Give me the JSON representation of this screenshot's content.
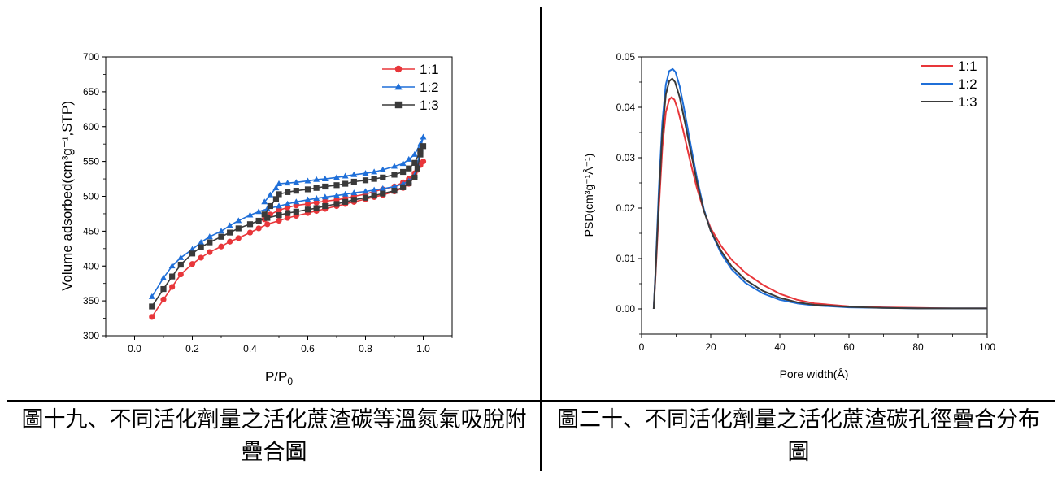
{
  "captions": {
    "left": "圖十九、不同活化劑量之活化蔗渣碳等溫氮氣吸脫附疊合圖",
    "right": "圖二十、不同活化劑量之活化蔗渣碳孔徑疊合分布圖"
  },
  "colors": {
    "red": "#e8363a",
    "blue": "#1f6fd8",
    "dark": "#3a3a3a"
  },
  "chart_data": [
    {
      "type": "line",
      "xlabel": "P/P",
      "xlabel_sub": "0",
      "ylabel": "Volume adsorbed(cm³g⁻¹,STP)",
      "xlim": [
        -0.1,
        1.1
      ],
      "ylim": [
        300,
        700
      ],
      "xticks": [
        "0.0",
        "0.2",
        "0.4",
        "0.6",
        "0.8",
        "1.0"
      ],
      "yticks": [
        "300",
        "350",
        "400",
        "450",
        "500",
        "550",
        "600",
        "650",
        "700"
      ],
      "legend_position": "top-right",
      "series": [
        {
          "name": "1:1",
          "marker": "circle",
          "color": "red",
          "x": [
            0.06,
            0.1,
            0.13,
            0.16,
            0.2,
            0.23,
            0.26,
            0.3,
            0.33,
            0.36,
            0.4,
            0.43,
            0.46,
            0.5,
            0.53,
            0.56,
            0.6,
            0.63,
            0.66,
            0.7,
            0.73,
            0.76,
            0.8,
            0.83,
            0.86,
            0.9,
            0.93,
            0.95,
            0.97,
            0.98,
            0.99,
            1.0,
            0.99,
            0.97,
            0.95,
            0.93,
            0.9,
            0.86,
            0.83,
            0.8,
            0.76,
            0.73,
            0.7,
            0.66,
            0.63,
            0.6,
            0.56,
            0.53,
            0.5,
            0.47,
            0.45
          ],
          "y": [
            327,
            352,
            370,
            388,
            403,
            412,
            420,
            428,
            435,
            440,
            448,
            454,
            460,
            465,
            469,
            472,
            476,
            479,
            482,
            486,
            489,
            492,
            496,
            499,
            502,
            507,
            512,
            518,
            528,
            538,
            545,
            550,
            545,
            533,
            525,
            520,
            514,
            510,
            507,
            503,
            500,
            497,
            495,
            493,
            491,
            489,
            487,
            484,
            480,
            474,
            467
          ]
        },
        {
          "name": "1:2",
          "marker": "triangle",
          "color": "blue",
          "x": [
            0.06,
            0.1,
            0.13,
            0.16,
            0.2,
            0.23,
            0.26,
            0.3,
            0.33,
            0.36,
            0.4,
            0.43,
            0.46,
            0.5,
            0.53,
            0.56,
            0.6,
            0.63,
            0.66,
            0.7,
            0.73,
            0.76,
            0.8,
            0.83,
            0.86,
            0.9,
            0.93,
            0.95,
            0.97,
            0.98,
            0.99,
            1.0,
            0.99,
            0.97,
            0.95,
            0.93,
            0.9,
            0.86,
            0.83,
            0.8,
            0.76,
            0.73,
            0.7,
            0.66,
            0.63,
            0.6,
            0.56,
            0.53,
            0.5,
            0.49,
            0.47,
            0.45
          ],
          "y": [
            356,
            383,
            400,
            412,
            424,
            434,
            442,
            450,
            458,
            465,
            473,
            478,
            482,
            486,
            489,
            492,
            495,
            497,
            499,
            501,
            503,
            505,
            507,
            509,
            511,
            514,
            518,
            522,
            530,
            545,
            568,
            585,
            575,
            560,
            553,
            547,
            543,
            538,
            535,
            533,
            531,
            529,
            527,
            525,
            524,
            522,
            520,
            519,
            518,
            512,
            502,
            492
          ]
        },
        {
          "name": "1:3",
          "marker": "square",
          "color": "dark",
          "x": [
            0.06,
            0.1,
            0.13,
            0.16,
            0.2,
            0.23,
            0.26,
            0.3,
            0.33,
            0.36,
            0.4,
            0.43,
            0.46,
            0.5,
            0.53,
            0.56,
            0.6,
            0.63,
            0.66,
            0.7,
            0.73,
            0.76,
            0.8,
            0.83,
            0.86,
            0.9,
            0.93,
            0.95,
            0.97,
            0.98,
            0.99,
            1.0,
            0.99,
            0.97,
            0.95,
            0.93,
            0.9,
            0.86,
            0.83,
            0.8,
            0.76,
            0.73,
            0.7,
            0.66,
            0.63,
            0.6,
            0.56,
            0.53,
            0.5,
            0.49,
            0.47,
            0.45
          ],
          "y": [
            342,
            367,
            385,
            402,
            418,
            427,
            434,
            442,
            448,
            454,
            460,
            465,
            469,
            473,
            476,
            478,
            481,
            483,
            486,
            489,
            492,
            495,
            498,
            501,
            504,
            508,
            513,
            519,
            527,
            540,
            560,
            572,
            565,
            548,
            540,
            535,
            531,
            527,
            525,
            523,
            521,
            518,
            516,
            514,
            512,
            510,
            508,
            506,
            503,
            496,
            486,
            474
          ]
        }
      ]
    },
    {
      "type": "line",
      "xlabel": "Pore width(Å)",
      "ylabel": "PSD(cm³g⁻¹Å⁻¹)",
      "xlim": [
        0,
        100
      ],
      "ylim": [
        -0.005,
        0.05
      ],
      "xticks": [
        "0",
        "20",
        "40",
        "60",
        "80",
        "100"
      ],
      "yticks": [
        "0.00",
        "0.01",
        "0.02",
        "0.03",
        "0.04",
        "0.05"
      ],
      "legend_position": "top-right",
      "series": [
        {
          "name": "1:1",
          "color": "red",
          "x": [
            3.5,
            4,
            5,
            6,
            7,
            8,
            8.7,
            9.5,
            10.5,
            12,
            14,
            16,
            18,
            20,
            23,
            26,
            30,
            35,
            40,
            45,
            50,
            60,
            70,
            80,
            90,
            100
          ],
          "y": [
            0,
            0.006,
            0.02,
            0.032,
            0.039,
            0.0415,
            0.042,
            0.0415,
            0.0395,
            0.0355,
            0.0295,
            0.024,
            0.0195,
            0.016,
            0.0125,
            0.0098,
            0.0072,
            0.0048,
            0.003,
            0.0018,
            0.0011,
            0.0005,
            0.0003,
            0.0002,
            0.0001,
            0.0001
          ]
        },
        {
          "name": "1:2",
          "color": "blue",
          "x": [
            3.5,
            4,
            5,
            6,
            7,
            8,
            9,
            9.8,
            11,
            12.5,
            14,
            16,
            18,
            20,
            23,
            26,
            30,
            35,
            40,
            45,
            50,
            60,
            70,
            80,
            90,
            100
          ],
          "y": [
            0,
            0.007,
            0.024,
            0.037,
            0.0445,
            0.0472,
            0.0476,
            0.047,
            0.0442,
            0.039,
            0.0333,
            0.026,
            0.0198,
            0.0155,
            0.011,
            0.0079,
            0.0052,
            0.0031,
            0.0018,
            0.0011,
            0.0007,
            0.0003,
            0.0002,
            0.0001,
            0.0001,
            0.0001
          ]
        },
        {
          "name": "1:3",
          "color": "dark",
          "x": [
            3.5,
            4,
            5,
            6,
            7,
            8,
            8.9,
            9.7,
            11,
            12.5,
            14,
            16,
            18,
            20,
            23,
            26,
            30,
            35,
            40,
            45,
            50,
            60,
            70,
            80,
            90,
            100
          ],
          "y": [
            0,
            0.0065,
            0.022,
            0.035,
            0.0425,
            0.0452,
            0.0457,
            0.045,
            0.042,
            0.0372,
            0.032,
            0.0252,
            0.0195,
            0.0155,
            0.0115,
            0.0085,
            0.0058,
            0.0036,
            0.0022,
            0.0013,
            0.0008,
            0.0004,
            0.0002,
            0.0001,
            0.0001,
            0.0001
          ]
        }
      ]
    }
  ]
}
